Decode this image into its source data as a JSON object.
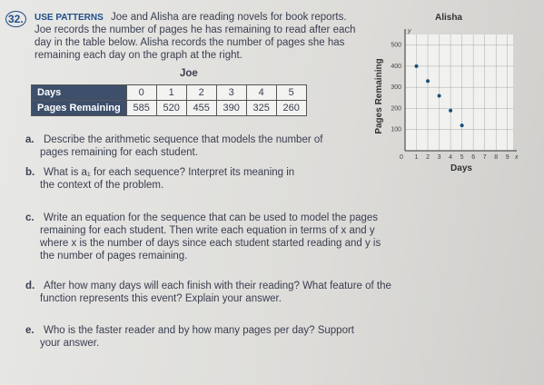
{
  "problem": {
    "number": "32.",
    "heading": "USE PATTERNS",
    "intro_lines": [
      "Joe and Alisha are reading novels for book reports.",
      "Joe records the number of pages he has remaining to read after each",
      "day in the table below. Alisha records the number of pages she has",
      "remaining each day on the graph at the right."
    ]
  },
  "table": {
    "title": "Joe",
    "rows": [
      [
        "Days",
        0,
        1,
        2,
        3,
        4,
        5
      ],
      [
        "Pages Remaining",
        585,
        520,
        455,
        390,
        325,
        260
      ]
    ]
  },
  "graph": {
    "type": "scatter",
    "title": "Alisha",
    "x_label": "Days",
    "y_label": "Pages Remaining",
    "x_axis_letter": "x",
    "y_axis_letter": "y",
    "x": [
      1,
      2,
      3,
      4,
      5
    ],
    "values": [
      400,
      330,
      260,
      190,
      120
    ],
    "color": "#1a4f7a",
    "xlim": [
      0,
      9.5
    ],
    "ylim": [
      0,
      550
    ],
    "xticks": [
      0,
      1,
      2,
      3,
      4,
      5,
      6,
      7,
      8,
      9
    ],
    "yticks": [
      100,
      200,
      300,
      400,
      500
    ],
    "grid": true
  },
  "questions": [
    {
      "letter": "a.",
      "lines": [
        "Describe the arithmetic sequence that models the number of",
        "pages remaining for each student."
      ]
    },
    {
      "letter": "b.",
      "lines": [
        "What is a₁ for each sequence? Interpret its meaning in",
        "the context of the problem."
      ]
    },
    {
      "letter": "c.",
      "lines": [
        "Write an equation for the sequence that can be used to model the pages",
        "remaining for each student. Then write each equation in terms of x and y",
        "where x is the number of days since each student started reading and y is",
        "the number of pages remaining."
      ]
    },
    {
      "letter": "d.",
      "lines": [
        "After how many days will each finish with their reading? What feature of the",
        "function represents this event? Explain your answer."
      ]
    },
    {
      "letter": "e.",
      "lines": [
        "Who is the faster reader and by how many pages per day? Support",
        "your answer."
      ]
    }
  ]
}
